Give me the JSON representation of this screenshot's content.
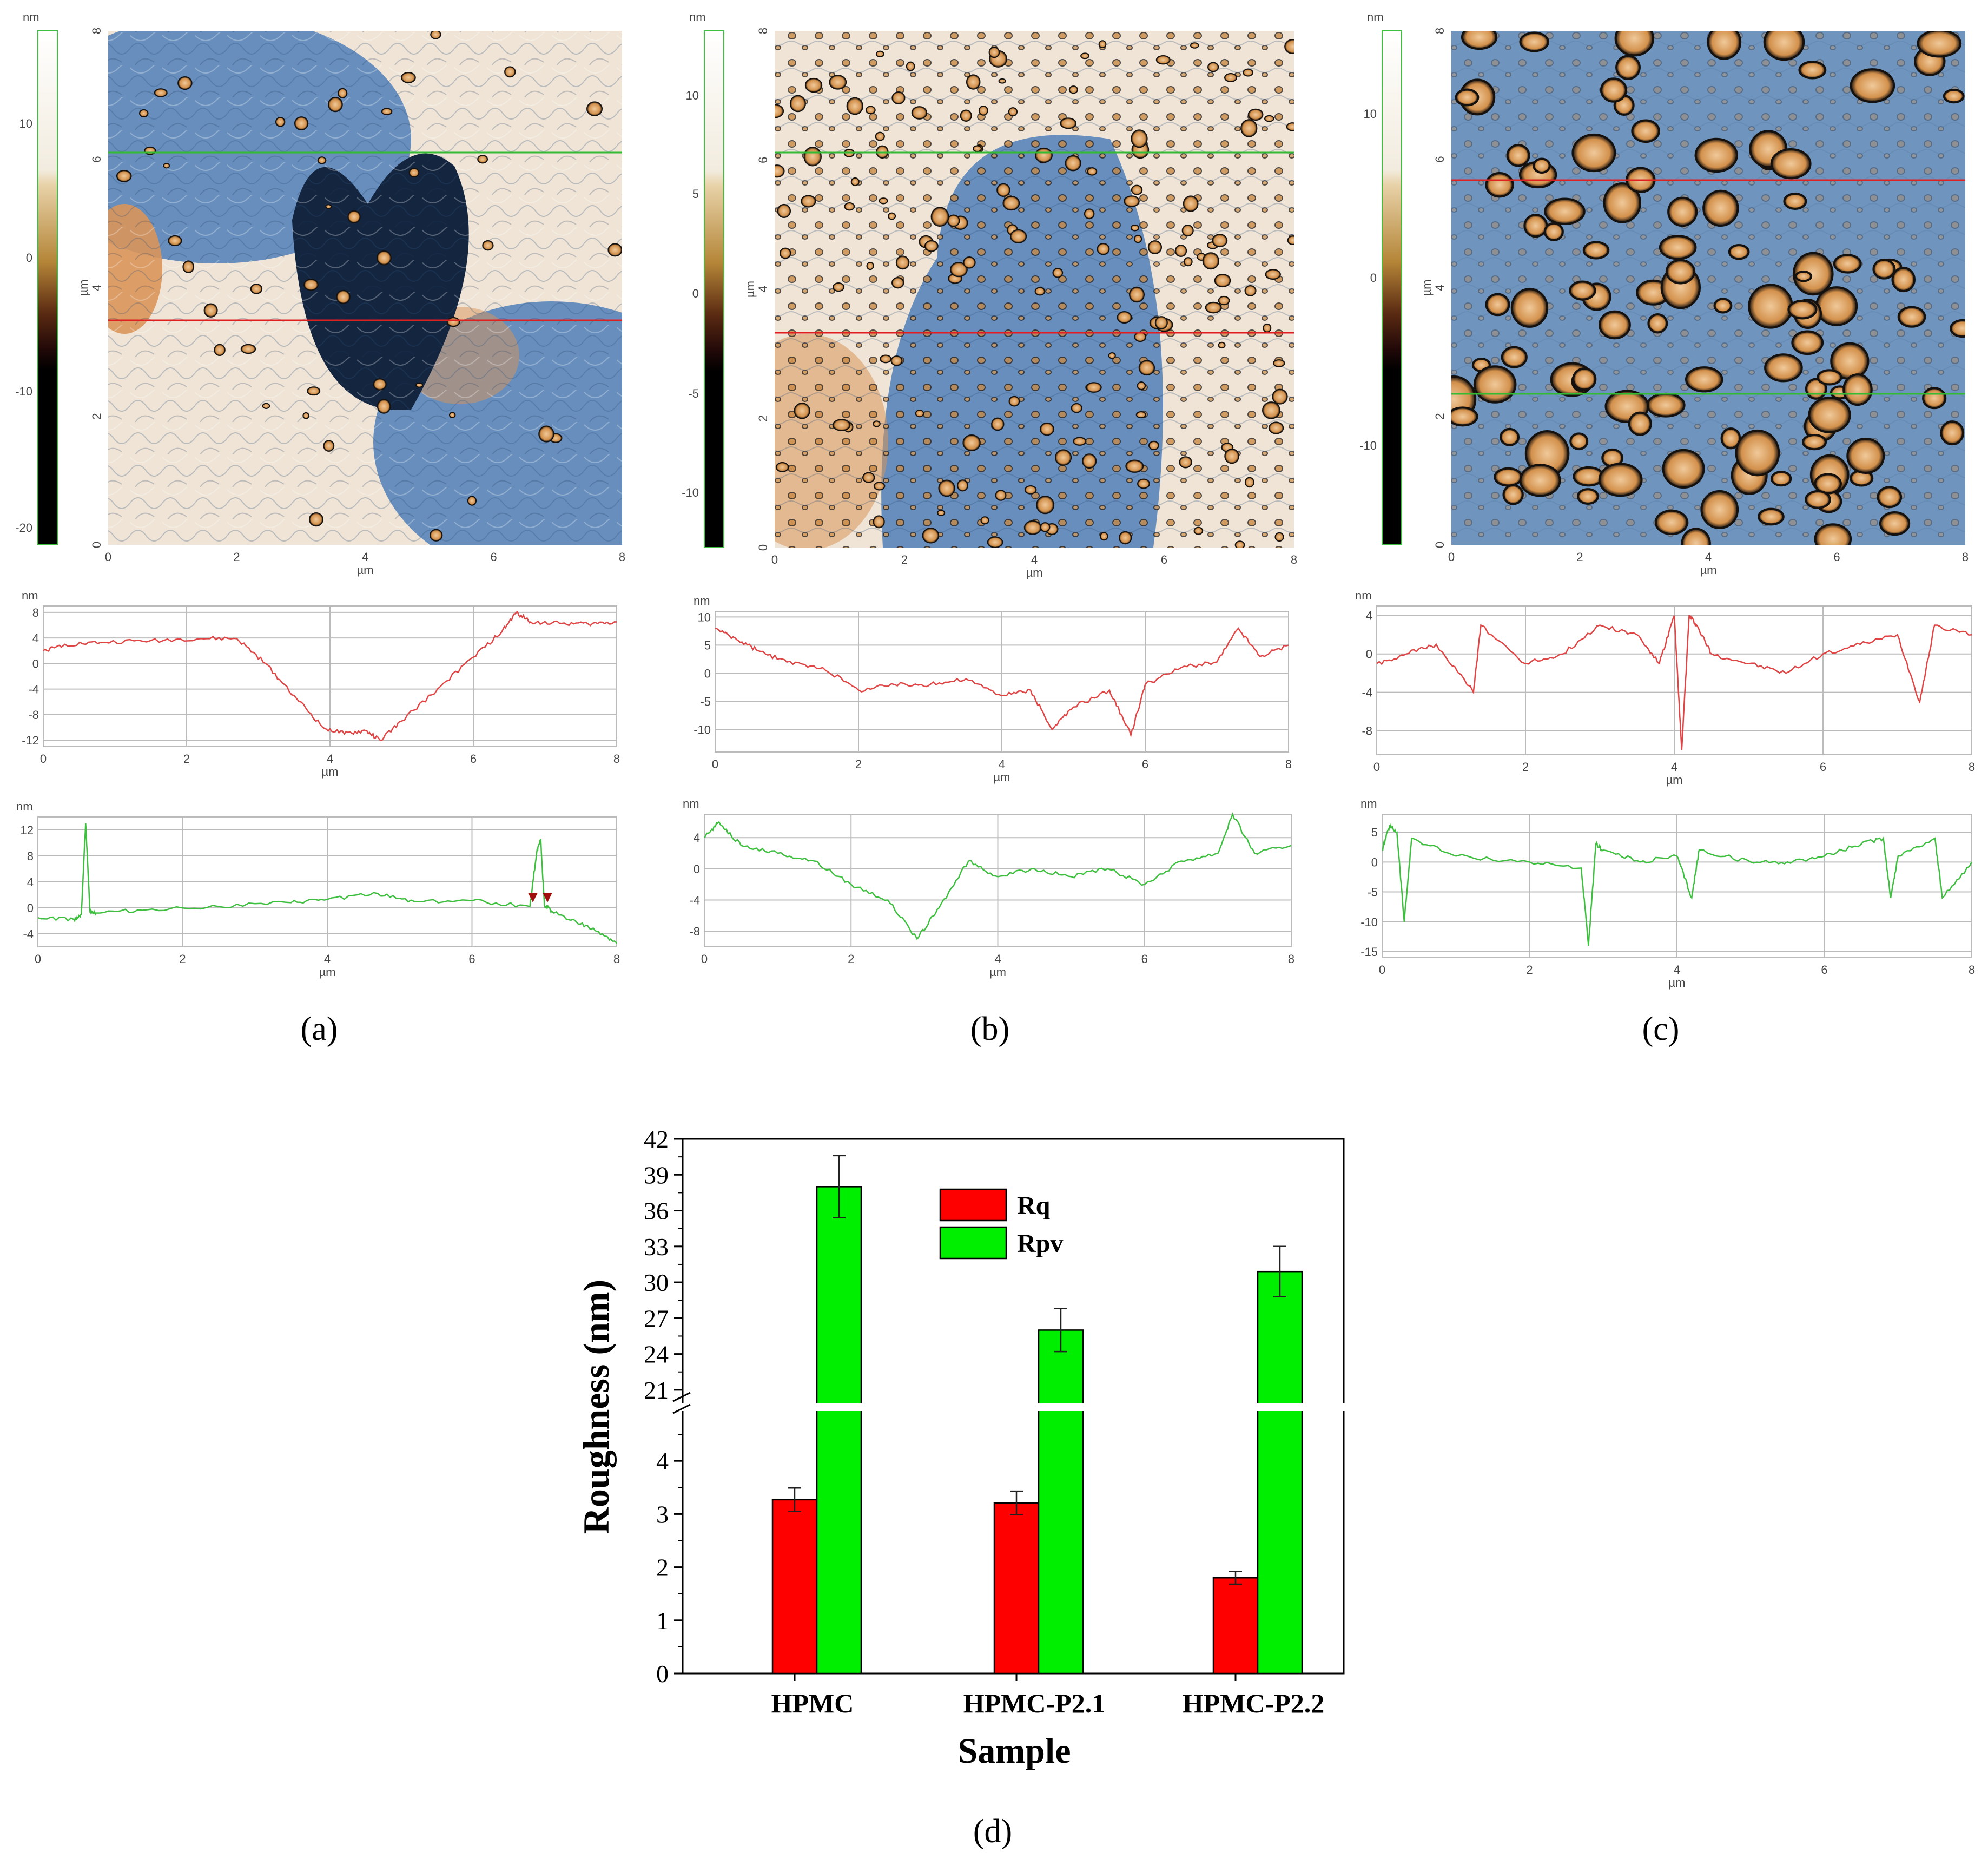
{
  "colors": {
    "red": "#ff0000",
    "green": "#00ee00",
    "profile_red": "#e04545",
    "profile_green": "#3fbf3f",
    "afm_blue": "#4f7fb8",
    "afm_orange": "#d9955a",
    "afm_cream": "#efe4d6"
  },
  "panel_labels": [
    "(a)",
    "(b)",
    "(c)",
    "(d)"
  ],
  "afm_panels": [
    {
      "id": "a",
      "scale_unit": "nm",
      "scale_ticks": [
        "10",
        "0",
        "-10",
        "-20"
      ],
      "y_ticks": [
        "8",
        "6",
        "4",
        "2",
        "0"
      ],
      "y_unit": "µm",
      "x_ticks": [
        "0",
        "2",
        "4",
        "6",
        "8"
      ],
      "x_unit": "µm",
      "red_profile": {
        "unit": "nm",
        "y_ticks": [
          "8",
          "4",
          "0",
          "-4",
          "-8",
          "-12"
        ],
        "ymin": -13,
        "ymax": 9,
        "x": [
          0,
          0.3,
          0.8,
          1.5,
          2.2,
          2.7,
          3.1,
          3.5,
          3.9,
          4.2,
          4.5,
          4.7,
          5.0,
          5.5,
          6.0,
          6.4,
          6.6,
          6.8,
          7.2,
          7.6,
          8.0
        ],
        "y": [
          2,
          3,
          3.3,
          3.6,
          3.9,
          3.9,
          0,
          -5,
          -10,
          -11,
          -10.5,
          -12,
          -9,
          -4,
          1,
          5,
          8,
          6.5,
          6.3,
          6.2,
          6.5
        ]
      },
      "green_profile": {
        "unit": "nm",
        "y_ticks": [
          "12",
          "8",
          "4",
          "0",
          "-4"
        ],
        "ymin": -6,
        "ymax": 14,
        "x": [
          0,
          0.5,
          0.6,
          0.66,
          0.72,
          0.8,
          1.5,
          2.5,
          3.5,
          4.0,
          4.7,
          5.2,
          6.0,
          6.8,
          6.9,
          6.95,
          7.0,
          7.1,
          7.5,
          7.8,
          8.0
        ],
        "y": [
          -1.5,
          -1.8,
          -1,
          13,
          -0.5,
          -0.8,
          -0.3,
          0.2,
          0.8,
          1.3,
          2.2,
          1.0,
          1.1,
          0.2,
          9,
          10.5,
          0.5,
          -0.5,
          -2.5,
          -4,
          -5.5
        ]
      },
      "profile_x_ticks": [
        "0",
        "2",
        "4",
        "6",
        "8"
      ],
      "profile_x_unit": "µm"
    },
    {
      "id": "b",
      "scale_unit": "nm",
      "scale_ticks": [
        "10",
        "5",
        "0",
        "-5",
        "-10"
      ],
      "y_ticks": [
        "8",
        "6",
        "4",
        "2",
        "0"
      ],
      "y_unit": "µm",
      "x_ticks": [
        "0",
        "2",
        "4",
        "6",
        "8"
      ],
      "x_unit": "µm",
      "red_profile": {
        "unit": "nm",
        "y_ticks": [
          "10",
          "5",
          "0",
          "-5",
          "-10"
        ],
        "ymin": -14,
        "ymax": 11,
        "x": [
          0,
          0.3,
          0.6,
          1.0,
          1.5,
          2.0,
          2.5,
          3.0,
          3.5,
          4.0,
          4.4,
          4.7,
          5.0,
          5.5,
          5.8,
          6.0,
          6.5,
          7.0,
          7.3,
          7.6,
          8.0
        ],
        "y": [
          8,
          6,
          4,
          2,
          1,
          -3,
          -2,
          -2,
          -1,
          -4,
          -3,
          -10,
          -6,
          -3,
          -11,
          -2,
          1,
          2,
          8,
          3,
          5
        ]
      },
      "green_profile": {
        "unit": "nm",
        "y_ticks": [
          "4",
          "0",
          "-4",
          "-8"
        ],
        "ymin": -10,
        "ymax": 7,
        "x": [
          0,
          0.2,
          0.5,
          1.0,
          1.5,
          2.0,
          2.5,
          2.9,
          3.2,
          3.6,
          4.0,
          4.5,
          5.0,
          5.5,
          6.0,
          6.5,
          7.0,
          7.2,
          7.5,
          8.0
        ],
        "y": [
          4,
          6,
          3,
          2,
          1,
          -2,
          -4,
          -9,
          -5,
          1,
          -1,
          0,
          -1,
          0,
          -2,
          1,
          2,
          7,
          2,
          3
        ]
      },
      "profile_x_ticks": [
        "0",
        "2",
        "4",
        "6",
        "8"
      ],
      "profile_x_unit": "µm"
    },
    {
      "id": "c",
      "scale_unit": "nm",
      "scale_ticks": [
        "10",
        "0",
        "-10"
      ],
      "y_ticks": [
        "8",
        "6",
        "4",
        "2",
        "0"
      ],
      "y_unit": "µm",
      "x_ticks": [
        "0",
        "2",
        "4",
        "6",
        "8"
      ],
      "x_unit": "µm",
      "red_profile": {
        "unit": "nm",
        "y_ticks": [
          "4",
          "0",
          "-4",
          "-8"
        ],
        "ymin": -10.5,
        "ymax": 5,
        "x": [
          0,
          0.4,
          0.8,
          1.3,
          1.4,
          2.0,
          2.5,
          3.0,
          3.5,
          3.8,
          4.0,
          4.1,
          4.2,
          4.3,
          4.5,
          5.0,
          5.5,
          6.0,
          6.5,
          7.0,
          7.3,
          7.5,
          8.0
        ],
        "y": [
          -1,
          0,
          1,
          -4,
          3,
          -1,
          0,
          3,
          2,
          -1,
          4,
          -10,
          4,
          3,
          0,
          -1,
          -2,
          0,
          1,
          2,
          -5,
          3,
          2
        ]
      },
      "green_profile": {
        "unit": "nm",
        "y_ticks": [
          "5",
          "0",
          "-5",
          "-10",
          "-15"
        ],
        "ymin": -16,
        "ymax": 8,
        "x": [
          0,
          0.1,
          0.2,
          0.3,
          0.4,
          1.0,
          2.0,
          2.7,
          2.8,
          2.9,
          3.0,
          3.5,
          4.0,
          4.2,
          4.3,
          5.0,
          5.5,
          6.0,
          6.5,
          6.8,
          6.9,
          7.0,
          7.5,
          7.6,
          8.0
        ],
        "y": [
          2,
          6,
          5,
          -10,
          4,
          1,
          0,
          -1,
          -14,
          3,
          2,
          0,
          1,
          -6,
          2,
          0,
          0,
          1,
          3,
          4,
          -6,
          1,
          4,
          -6,
          0
        ]
      },
      "profile_x_ticks": [
        "0",
        "2",
        "4",
        "6",
        "8"
      ],
      "profile_x_unit": "µm"
    }
  ],
  "chart_data": {
    "type": "bar",
    "title": "",
    "xlabel": "Sample",
    "ylabel": "Roughness (nm)",
    "categories": [
      "HPMC",
      "HPMC-P2.1",
      "HPMC-P2.2"
    ],
    "series": [
      {
        "name": "Rq",
        "values": [
          3.27,
          3.21,
          1.8
        ],
        "errors": [
          0.22,
          0.22,
          0.12
        ],
        "color": "#ff0000"
      },
      {
        "name": "Rpv",
        "values": [
          38.0,
          26.0,
          30.9
        ],
        "errors": [
          2.6,
          1.8,
          2.1
        ],
        "color": "#00ee00"
      }
    ],
    "y_axis_break": {
      "lower_range": [
        0,
        5
      ],
      "upper_range": [
        19.5,
        42
      ]
    },
    "lower_ticks": [
      "0",
      "1",
      "2",
      "3",
      "4"
    ],
    "upper_ticks": [
      "21",
      "24",
      "27",
      "30",
      "33",
      "36",
      "39",
      "42"
    ],
    "legend_position": "top-center"
  }
}
